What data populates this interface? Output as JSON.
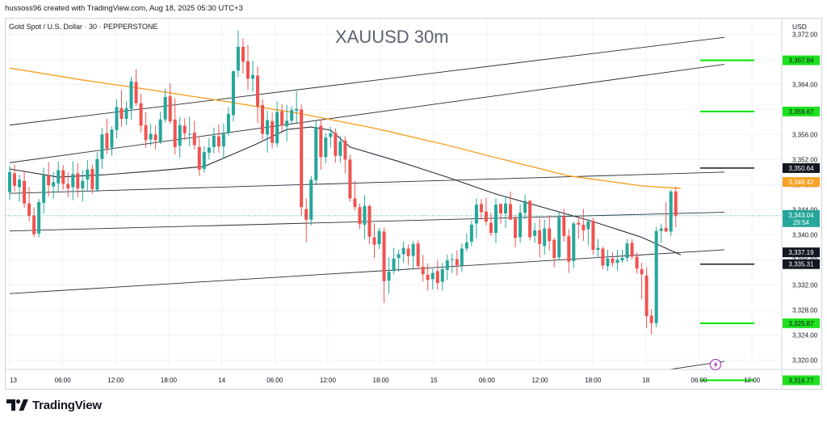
{
  "header": {
    "credit": "hussoss96 created with TradingView.com, Aug 18, 2025 05:30 UTC+3"
  },
  "footer": {
    "brand": "TradingView"
  },
  "chart_data": {
    "type": "candlestick",
    "title": "XAUUSD 30m",
    "symbol_line": "Gold Spot / U.S. Dollar · 30 · PEPPERSTONE",
    "currency": "USD",
    "ylim": [
      3318.5,
      3374.5
    ],
    "y_ticks": [
      3372,
      3368,
      3364,
      3360,
      3356,
      3352,
      3348,
      3344,
      3340,
      3336,
      3332,
      3328,
      3324,
      3320,
      3316
    ],
    "y_tick_labels": [
      "3,372.00",
      "3,368.00",
      "3,364.00",
      "3,360.00",
      "3,356.00",
      "3,352.00",
      "3,348.00",
      "3,344.00",
      "3,340.00",
      "3,336.00",
      "3,332.00",
      "3,328.00",
      "3,324.00",
      "3,320.00",
      "3,316.00"
    ],
    "x_ticks": [
      "13",
      "06:00",
      "12:00",
      "18:00",
      "14",
      "06:00",
      "12:00",
      "18:00",
      "15",
      "06:00",
      "12:00",
      "18:00",
      "18",
      "06:00",
      "12:00"
    ],
    "colors": {
      "up": "#26a69a",
      "down": "#ef5350",
      "ma_orange": "#f7a325",
      "ma_dark": "#2a2e39",
      "trendline": "#2a2e39",
      "level_green": "#00e600",
      "tag_green": "#1ee01e",
      "tag_black": "#131722",
      "tag_orange": "#f7a325",
      "tag_teal": "#26a69a",
      "grid": "#f0f3fa"
    },
    "candles": [
      [
        3346.8,
        3351.0,
        3345.6,
        3350.0
      ],
      [
        3349.8,
        3351.2,
        3346.9,
        3347.8
      ],
      [
        3347.6,
        3349.6,
        3345.2,
        3348.8
      ],
      [
        3348.6,
        3350.1,
        3344.3,
        3345.0
      ],
      [
        3345.0,
        3347.6,
        3342.2,
        3343.0
      ],
      [
        3343.1,
        3344.4,
        3339.6,
        3340.1
      ],
      [
        3340.2,
        3345.7,
        3339.6,
        3345.2
      ],
      [
        3345.1,
        3350.7,
        3343.4,
        3349.5
      ],
      [
        3349.4,
        3351.6,
        3346.1,
        3347.9
      ],
      [
        3347.7,
        3350.0,
        3345.7,
        3348.4
      ],
      [
        3348.2,
        3351.7,
        3346.8,
        3350.3
      ],
      [
        3350.3,
        3351.1,
        3347.2,
        3348.1
      ],
      [
        3348.1,
        3350.0,
        3346.0,
        3347.4
      ],
      [
        3347.6,
        3351.7,
        3345.5,
        3349.7
      ],
      [
        3349.8,
        3351.4,
        3346.0,
        3347.4
      ],
      [
        3347.4,
        3350.3,
        3345.3,
        3348.6
      ],
      [
        3348.8,
        3351.9,
        3346.9,
        3350.4
      ],
      [
        3350.5,
        3351.2,
        3346.5,
        3347.3
      ],
      [
        3347.2,
        3353.2,
        3346.8,
        3352.1
      ],
      [
        3352.1,
        3357.0,
        3350.5,
        3356.0
      ],
      [
        3356.2,
        3358.5,
        3352.9,
        3353.8
      ],
      [
        3353.9,
        3357.3,
        3352.6,
        3356.8
      ],
      [
        3356.7,
        3361.6,
        3355.4,
        3360.4
      ],
      [
        3360.2,
        3363.1,
        3357.2,
        3358.5
      ],
      [
        3358.5,
        3361.3,
        3357.5,
        3360.2
      ],
      [
        3360.1,
        3365.2,
        3358.4,
        3364.5
      ],
      [
        3364.4,
        3366.4,
        3360.6,
        3361.0
      ],
      [
        3361.0,
        3362.5,
        3356.3,
        3357.4
      ],
      [
        3357.5,
        3359.6,
        3353.9,
        3355.1
      ],
      [
        3355.2,
        3357.7,
        3354.3,
        3356.1
      ],
      [
        3356.0,
        3357.4,
        3353.6,
        3355.1
      ],
      [
        3354.9,
        3359.6,
        3354.5,
        3358.4
      ],
      [
        3358.4,
        3363.3,
        3357.9,
        3362.0
      ],
      [
        3362.1,
        3364.2,
        3357.7,
        3358.1
      ],
      [
        3358.4,
        3361.8,
        3352.8,
        3354.0
      ],
      [
        3354.2,
        3358.8,
        3352.3,
        3357.5
      ],
      [
        3357.4,
        3358.6,
        3355.1,
        3356.2
      ],
      [
        3356.0,
        3358.8,
        3354.1,
        3356.1
      ],
      [
        3356.3,
        3358.2,
        3353.6,
        3354.3
      ],
      [
        3354.0,
        3355.5,
        3349.4,
        3350.4
      ],
      [
        3350.5,
        3354.1,
        3349.9,
        3353.2
      ],
      [
        3353.1,
        3355.4,
        3352.0,
        3353.9
      ],
      [
        3354.0,
        3357.1,
        3353.0,
        3355.8
      ],
      [
        3355.7,
        3357.6,
        3353.1,
        3354.1
      ],
      [
        3354.1,
        3357.8,
        3352.1,
        3356.1
      ],
      [
        3356.2,
        3360.4,
        3355.8,
        3359.3
      ],
      [
        3359.1,
        3366.2,
        3358.1,
        3366.1
      ],
      [
        3366.2,
        3372.6,
        3365.2,
        3370.0
      ],
      [
        3370.0,
        3371.3,
        3365.7,
        3367.6
      ],
      [
        3367.7,
        3370.3,
        3363.1,
        3364.9
      ],
      [
        3364.9,
        3367.8,
        3362.8,
        3365.5
      ],
      [
        3365.4,
        3366.9,
        3357.8,
        3360.5
      ],
      [
        3360.7,
        3361.6,
        3355.2,
        3356.1
      ],
      [
        3356.0,
        3359.8,
        3353.1,
        3358.3
      ],
      [
        3358.1,
        3359.5,
        3353.8,
        3354.7
      ],
      [
        3354.6,
        3361.3,
        3354.0,
        3359.6
      ],
      [
        3359.7,
        3360.8,
        3356.5,
        3357.4
      ],
      [
        3357.3,
        3360.7,
        3354.9,
        3358.2
      ],
      [
        3358.2,
        3360.5,
        3357.8,
        3359.9
      ],
      [
        3359.8,
        3362.9,
        3357.9,
        3360.1
      ],
      [
        3360.0,
        3360.8,
        3343.0,
        3344.4
      ],
      [
        3344.1,
        3345.8,
        3338.8,
        3342.4
      ],
      [
        3342.4,
        3349.4,
        3341.5,
        3348.8
      ],
      [
        3348.7,
        3358.2,
        3348.1,
        3357.2
      ],
      [
        3357.4,
        3358.4,
        3350.4,
        3352.4
      ],
      [
        3352.4,
        3356.2,
        3351.4,
        3355.5
      ],
      [
        3355.6,
        3357.2,
        3353.9,
        3356.2
      ],
      [
        3356.3,
        3357.0,
        3351.5,
        3352.6
      ],
      [
        3352.6,
        3355.8,
        3351.5,
        3354.9
      ],
      [
        3355.0,
        3355.7,
        3349.8,
        3352.0
      ],
      [
        3352.0,
        3352.8,
        3345.3,
        3345.8
      ],
      [
        3345.8,
        3348.6,
        3343.9,
        3344.4
      ],
      [
        3344.4,
        3345.0,
        3340.9,
        3341.7
      ],
      [
        3341.6,
        3346.3,
        3339.3,
        3344.6
      ],
      [
        3344.6,
        3344.8,
        3338.5,
        3339.7
      ],
      [
        3339.6,
        3341.8,
        3336.3,
        3338.4
      ],
      [
        3338.5,
        3341.1,
        3337.7,
        3340.6
      ],
      [
        3340.5,
        3341.1,
        3329.1,
        3332.6
      ],
      [
        3332.7,
        3336.4,
        3330.6,
        3334.1
      ],
      [
        3334.2,
        3337.9,
        3333.7,
        3336.2
      ],
      [
        3336.3,
        3337.6,
        3334.1,
        3336.9
      ],
      [
        3336.9,
        3338.9,
        3335.5,
        3337.9
      ],
      [
        3337.8,
        3338.5,
        3335.1,
        3336.6
      ],
      [
        3336.6,
        3339.0,
        3334.6,
        3338.5
      ],
      [
        3338.6,
        3339.1,
        3334.5,
        3335.0
      ],
      [
        3334.9,
        3336.8,
        3332.5,
        3333.7
      ],
      [
        3333.6,
        3335.4,
        3331.1,
        3332.8
      ],
      [
        3332.9,
        3334.6,
        3331.3,
        3333.9
      ],
      [
        3334.2,
        3335.9,
        3331.2,
        3332.3
      ],
      [
        3332.5,
        3335.5,
        3331.1,
        3334.5
      ],
      [
        3334.4,
        3336.8,
        3332.8,
        3335.9
      ],
      [
        3336.0,
        3337.0,
        3333.9,
        3336.1
      ],
      [
        3336.1,
        3337.5,
        3333.5,
        3335.1
      ],
      [
        3335.1,
        3338.6,
        3334.1,
        3337.8
      ],
      [
        3337.8,
        3340.2,
        3337.3,
        3338.8
      ],
      [
        3338.9,
        3342.3,
        3338.2,
        3341.6
      ],
      [
        3341.8,
        3345.8,
        3339.4,
        3344.8
      ],
      [
        3344.9,
        3345.7,
        3342.4,
        3343.6
      ],
      [
        3343.7,
        3345.9,
        3341.5,
        3342.1
      ],
      [
        3341.9,
        3343.5,
        3339.8,
        3340.3
      ],
      [
        3340.3,
        3345.8,
        3338.7,
        3344.8
      ],
      [
        3344.9,
        3345.0,
        3341.7,
        3343.4
      ],
      [
        3343.4,
        3346.2,
        3341.1,
        3345.0
      ],
      [
        3344.9,
        3346.9,
        3342.4,
        3342.4
      ],
      [
        3342.6,
        3343.2,
        3338.0,
        3339.5
      ],
      [
        3339.6,
        3344.8,
        3338.7,
        3343.5
      ],
      [
        3343.5,
        3346.4,
        3342.5,
        3345.4
      ],
      [
        3345.4,
        3345.6,
        3339.1,
        3339.6
      ],
      [
        3339.8,
        3341.9,
        3338.7,
        3340.7
      ],
      [
        3340.7,
        3342.6,
        3336.4,
        3338.5
      ],
      [
        3338.2,
        3342.4,
        3336.8,
        3341.0
      ],
      [
        3341.0,
        3343.1,
        3337.5,
        3339.0
      ],
      [
        3339.2,
        3339.5,
        3334.8,
        3336.3
      ],
      [
        3336.4,
        3343.6,
        3335.9,
        3342.8
      ],
      [
        3342.9,
        3344.2,
        3338.9,
        3339.8
      ],
      [
        3339.8,
        3340.9,
        3333.9,
        3335.7
      ],
      [
        3335.8,
        3342.1,
        3334.7,
        3341.8
      ],
      [
        3341.9,
        3342.9,
        3339.4,
        3341.6
      ],
      [
        3341.6,
        3344.1,
        3339.0,
        3340.7
      ],
      [
        3340.9,
        3342.5,
        3338.3,
        3342.1
      ],
      [
        3342.2,
        3342.7,
        3336.8,
        3337.6
      ],
      [
        3337.6,
        3339.3,
        3336.3,
        3337.9
      ],
      [
        3337.8,
        3338.1,
        3334.5,
        3335.1
      ],
      [
        3335.0,
        3337.6,
        3334.2,
        3336.2
      ],
      [
        3336.2,
        3337.2,
        3334.9,
        3335.5
      ],
      [
        3335.5,
        3337.6,
        3334.3,
        3336.0
      ],
      [
        3335.9,
        3337.6,
        3335.5,
        3336.3
      ],
      [
        3336.3,
        3339.3,
        3335.7,
        3338.6
      ],
      [
        3338.7,
        3339.3,
        3336.1,
        3336.5
      ],
      [
        3336.5,
        3337.2,
        3333.8,
        3334.6
      ],
      [
        3334.5,
        3335.5,
        3329.7,
        3333.7
      ],
      [
        3333.5,
        3334.8,
        3325.1,
        3327.0
      ],
      [
        3327.1,
        3328.1,
        3324.1,
        3325.9
      ],
      [
        3325.9,
        3341.3,
        3325.2,
        3340.6
      ],
      [
        3340.6,
        3341.8,
        3338.7,
        3341.0
      ],
      [
        3341.1,
        3345.2,
        3340.9,
        3340.5
      ],
      [
        3340.5,
        3347.2,
        3339.8,
        3346.9
      ],
      [
        3346.9,
        3347.7,
        3341.2,
        3343.0
      ]
    ],
    "moving_averages": [
      {
        "color_key": "ma_orange",
        "points": [
          [
            0,
            3366.6
          ],
          [
            15,
            3364.7
          ],
          [
            30,
            3363.0
          ],
          [
            45,
            3361.2
          ],
          [
            60,
            3359.3
          ],
          [
            75,
            3357.0
          ],
          [
            90,
            3354.3
          ],
          [
            100,
            3352.3
          ],
          [
            115,
            3349.4
          ],
          [
            130,
            3347.8
          ],
          [
            138,
            3347.4
          ]
        ]
      },
      {
        "color_key": "ma_dark",
        "points": [
          [
            0,
            3350.5
          ],
          [
            10,
            3349.2
          ],
          [
            20,
            3349.6
          ],
          [
            30,
            3350.2
          ],
          [
            40,
            3350.9
          ],
          [
            50,
            3354.2
          ],
          [
            57,
            3356.8
          ],
          [
            62,
            3357.2
          ],
          [
            66,
            3356.7
          ],
          [
            70,
            3354.0
          ],
          [
            80,
            3351.7
          ],
          [
            90,
            3349.2
          ],
          [
            100,
            3346.5
          ],
          [
            110,
            3344.3
          ],
          [
            120,
            3342.1
          ],
          [
            130,
            3339.6
          ],
          [
            138,
            3336.8
          ]
        ]
      }
    ],
    "trendlines": [
      {
        "from": [
          0,
          3357.5
        ],
        "to": [
          147,
          3371.5
        ]
      },
      {
        "from": [
          0,
          3351.5
        ],
        "to": [
          147,
          3367.2
        ]
      },
      {
        "from": [
          0,
          3346.6
        ],
        "to": [
          147,
          3350.0
        ]
      },
      {
        "from": [
          0,
          3340.6
        ],
        "to": [
          147,
          3343.6
        ]
      },
      {
        "from": [
          0,
          3330.6
        ],
        "to": [
          147,
          3337.6
        ]
      },
      {
        "from": [
          62,
          3310.0
        ],
        "to": [
          147,
          3319.8
        ]
      },
      {
        "from": [
          95,
          3310.0
        ],
        "to": [
          147,
          3317.0
        ]
      }
    ],
    "price_levels": [
      {
        "value": 3367.84,
        "label": "3,367.84",
        "color_key": "level_green",
        "tag_key": "tag_green"
      },
      {
        "value": 3359.67,
        "label": "3,359.67",
        "color_key": "level_green",
        "tag_key": "tag_green"
      },
      {
        "value": 3350.64,
        "label": "3,350.64",
        "color_key": "tag_black",
        "tag_key": "tag_black"
      },
      {
        "value": 3335.31,
        "label": "3,335.31",
        "color_key": "tag_black",
        "tag_key": "tag_black"
      },
      {
        "value": 3325.87,
        "label": "3,325.87",
        "color_key": "level_green",
        "tag_key": "tag_green"
      },
      {
        "value": 3316.77,
        "label": "3,316.77",
        "color_key": "level_green",
        "tag_key": "tag_green"
      }
    ],
    "axis_tags": [
      {
        "value": 3348.42,
        "label": "3,348.42",
        "tag_key": "tag_orange",
        "text_color": "#ffffff"
      },
      {
        "value": 3342.21,
        "label": "3,342.21",
        "tag_key": "tag_black",
        "text_color": "#ffffff"
      },
      {
        "value": 3337.19,
        "label": "3,337.19",
        "tag_key": "tag_black",
        "text_color": "#ffffff"
      }
    ],
    "last_price": {
      "value": 3343.04,
      "label": "3,343.04",
      "countdown": "29:54"
    }
  }
}
